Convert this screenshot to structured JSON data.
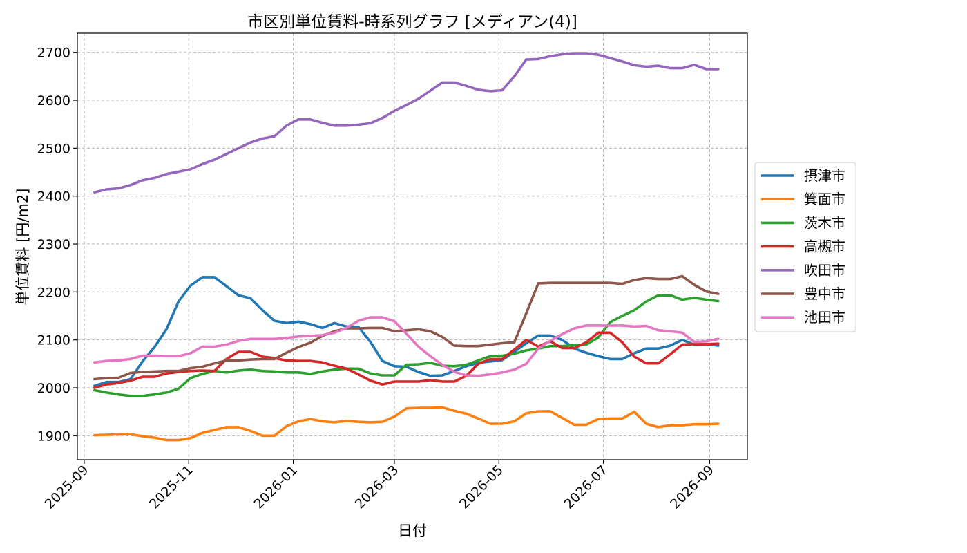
{
  "chart_data": {
    "type": "line",
    "title": "市区別単位賃料-時系列グラフ [メディアン(4)]",
    "xlabel": "日付",
    "ylabel": "単位賃料 [円/m2]",
    "ylim": [
      1850,
      2740
    ],
    "yticks": [
      1900,
      2000,
      2100,
      2200,
      2300,
      2400,
      2500,
      2600,
      2700
    ],
    "xlim": [
      "2025-08-28",
      "2026-09-23"
    ],
    "xticks": [
      "2025-09",
      "2025-11",
      "2026-01",
      "2026-03",
      "2026-05",
      "2026-07",
      "2026-09"
    ],
    "grid": true,
    "legend": "center-right outside",
    "x": [
      "2025-09-07",
      "2025-09-14",
      "2025-09-21",
      "2025-09-28",
      "2025-10-05",
      "2025-10-12",
      "2025-10-19",
      "2025-10-26",
      "2025-11-02",
      "2025-11-09",
      "2025-11-16",
      "2025-11-23",
      "2025-11-30",
      "2025-12-07",
      "2025-12-14",
      "2025-12-21",
      "2025-12-28",
      "2026-01-04",
      "2026-01-11",
      "2026-01-18",
      "2026-01-25",
      "2026-02-01",
      "2026-02-08",
      "2026-02-15",
      "2026-02-22",
      "2026-03-01",
      "2026-03-08",
      "2026-03-15",
      "2026-03-22",
      "2026-03-29",
      "2026-04-05",
      "2026-04-12",
      "2026-04-19",
      "2026-04-26",
      "2026-05-03",
      "2026-05-10",
      "2026-05-17",
      "2026-05-24",
      "2026-05-31",
      "2026-06-07",
      "2026-06-14",
      "2026-06-21",
      "2026-06-28",
      "2026-07-05",
      "2026-07-12",
      "2026-07-19",
      "2026-07-26",
      "2026-08-02",
      "2026-08-09",
      "2026-08-16",
      "2026-08-23",
      "2026-08-30",
      "2026-09-06"
    ],
    "series": [
      {
        "name": "摂津市",
        "color": "#1f77b4",
        "values": [
          2004,
          2012,
          2012,
          2018,
          2055,
          2085,
          2122,
          2180,
          2213,
          2231,
          2231,
          2212,
          2193,
          2187,
          2162,
          2140,
          2135,
          2138,
          2133,
          2125,
          2135,
          2128,
          2127,
          2096,
          2056,
          2045,
          2044,
          2033,
          2025,
          2026,
          2035,
          2045,
          2052,
          2055,
          2058,
          2075,
          2093,
          2109,
          2109,
          2100,
          2082,
          2073,
          2066,
          2060,
          2060,
          2072,
          2082,
          2082,
          2088,
          2100,
          2090,
          2091,
          2088
        ]
      },
      {
        "name": "箕面市",
        "color": "#ff7f0e",
        "values": [
          1901,
          1902,
          1903,
          1903,
          1899,
          1896,
          1891,
          1891,
          1895,
          1906,
          1912,
          1918,
          1918,
          1910,
          1900,
          1900,
          1920,
          1930,
          1935,
          1930,
          1928,
          1931,
          1929,
          1928,
          1929,
          1940,
          1957,
          1958,
          1958,
          1959,
          1952,
          1946,
          1936,
          1925,
          1925,
          1930,
          1947,
          1951,
          1951,
          1937,
          1923,
          1923,
          1935,
          1936,
          1936,
          1950,
          1925,
          1918,
          1922,
          1922,
          1924,
          1924,
          1925
        ]
      },
      {
        "name": "茨木市",
        "color": "#2ca02c",
        "values": [
          1995,
          1990,
          1986,
          1983,
          1983,
          1986,
          1990,
          1998,
          2020,
          2029,
          2035,
          2032,
          2036,
          2038,
          2035,
          2034,
          2032,
          2032,
          2029,
          2034,
          2038,
          2040,
          2040,
          2030,
          2026,
          2026,
          2048,
          2049,
          2052,
          2046,
          2045,
          2048,
          2057,
          2066,
          2067,
          2071,
          2078,
          2082,
          2087,
          2087,
          2089,
          2090,
          2105,
          2137,
          2150,
          2162,
          2180,
          2193,
          2193,
          2184,
          2188,
          2184,
          2181
        ]
      },
      {
        "name": "高槻市",
        "color": "#d62728",
        "values": [
          2000,
          2007,
          2010,
          2015,
          2023,
          2023,
          2030,
          2033,
          2035,
          2036,
          2035,
          2060,
          2075,
          2075,
          2065,
          2062,
          2057,
          2056,
          2056,
          2053,
          2046,
          2040,
          2028,
          2015,
          2007,
          2013,
          2013,
          2013,
          2016,
          2013,
          2013,
          2025,
          2050,
          2060,
          2060,
          2080,
          2100,
          2086,
          2097,
          2083,
          2083,
          2095,
          2115,
          2115,
          2095,
          2065,
          2051,
          2051,
          2070,
          2090,
          2091,
          2091,
          2092
        ]
      },
      {
        "name": "吹田市",
        "color": "#9467bd",
        "values": [
          2408,
          2414,
          2416,
          2423,
          2433,
          2438,
          2446,
          2451,
          2456,
          2467,
          2476,
          2488,
          2500,
          2512,
          2520,
          2525,
          2547,
          2560,
          2560,
          2553,
          2547,
          2547,
          2549,
          2552,
          2563,
          2578,
          2590,
          2603,
          2620,
          2637,
          2637,
          2630,
          2622,
          2619,
          2621,
          2650,
          2685,
          2686,
          2692,
          2696,
          2698,
          2698,
          2695,
          2688,
          2681,
          2673,
          2670,
          2672,
          2667,
          2667,
          2674,
          2665,
          2665
        ]
      },
      {
        "name": "豊中市",
        "color": "#8c564b",
        "values": [
          2018,
          2020,
          2021,
          2031,
          2033,
          2034,
          2035,
          2035,
          2041,
          2044,
          2051,
          2057,
          2057,
          2059,
          2060,
          2060,
          2073,
          2085,
          2094,
          2108,
          2118,
          2124,
          2124,
          2125,
          2125,
          2118,
          2120,
          2122,
          2118,
          2106,
          2088,
          2087,
          2087,
          2090,
          2093,
          2095,
          2156,
          2218,
          2219,
          2219,
          2219,
          2219,
          2219,
          2219,
          2217,
          2225,
          2229,
          2227,
          2227,
          2233,
          2215,
          2201,
          2196
        ]
      },
      {
        "name": "池田市",
        "color": "#e377c2",
        "values": [
          2053,
          2056,
          2057,
          2060,
          2067,
          2067,
          2066,
          2066,
          2072,
          2086,
          2086,
          2090,
          2098,
          2102,
          2102,
          2102,
          2104,
          2107,
          2108,
          2110,
          2115,
          2125,
          2140,
          2147,
          2147,
          2139,
          2113,
          2086,
          2066,
          2048,
          2033,
          2026,
          2025,
          2028,
          2032,
          2038,
          2050,
          2082,
          2098,
          2112,
          2124,
          2130,
          2130,
          2130,
          2130,
          2128,
          2129,
          2120,
          2118,
          2115,
          2096,
          2097,
          2102
        ]
      }
    ]
  }
}
